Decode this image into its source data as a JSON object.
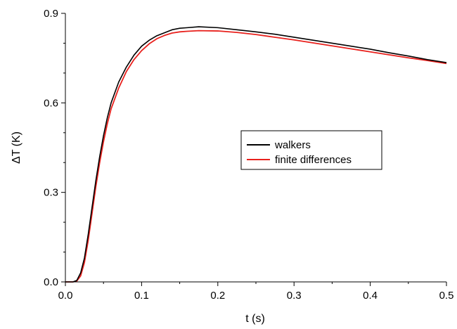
{
  "chart_data": {
    "type": "line",
    "xlabel": "t (s)",
    "ylabel": "ΔT  (K)",
    "xlim": [
      0.0,
      0.5
    ],
    "ylim": [
      0.0,
      0.9
    ],
    "x_ticks": [
      {
        "value": 0.0,
        "label": "0.0"
      },
      {
        "value": 0.1,
        "label": "0.1"
      },
      {
        "value": 0.2,
        "label": "0.2"
      },
      {
        "value": 0.3,
        "label": "0.3"
      },
      {
        "value": 0.4,
        "label": "0.4"
      },
      {
        "value": 0.5,
        "label": "0.5"
      }
    ],
    "y_ticks": [
      {
        "value": 0.0,
        "label": "0.0"
      },
      {
        "value": 0.3,
        "label": "0.3"
      },
      {
        "value": 0.6,
        "label": "0.6"
      },
      {
        "value": 0.9,
        "label": "0.9"
      }
    ],
    "grid": false,
    "legend_position": "center-right",
    "series": [
      {
        "name": "walkers",
        "color": "#000000",
        "x": [
          0.0,
          0.01,
          0.015,
          0.02,
          0.025,
          0.03,
          0.035,
          0.04,
          0.045,
          0.05,
          0.055,
          0.06,
          0.07,
          0.08,
          0.09,
          0.1,
          0.11,
          0.12,
          0.13,
          0.14,
          0.15,
          0.16,
          0.175,
          0.2,
          0.225,
          0.25,
          0.275,
          0.3,
          0.325,
          0.35,
          0.375,
          0.4,
          0.425,
          0.45,
          0.475,
          0.5
        ],
        "y": [
          0.0,
          0.0,
          0.005,
          0.03,
          0.08,
          0.16,
          0.25,
          0.34,
          0.42,
          0.49,
          0.55,
          0.6,
          0.67,
          0.72,
          0.76,
          0.79,
          0.81,
          0.825,
          0.835,
          0.845,
          0.85,
          0.852,
          0.855,
          0.852,
          0.845,
          0.838,
          0.83,
          0.82,
          0.81,
          0.8,
          0.79,
          0.78,
          0.768,
          0.757,
          0.745,
          0.735
        ]
      },
      {
        "name": "finite differences",
        "color": "#e8211d",
        "x": [
          0.0,
          0.01,
          0.015,
          0.02,
          0.025,
          0.03,
          0.035,
          0.04,
          0.045,
          0.05,
          0.055,
          0.06,
          0.07,
          0.08,
          0.09,
          0.1,
          0.11,
          0.12,
          0.13,
          0.14,
          0.15,
          0.16,
          0.175,
          0.2,
          0.225,
          0.25,
          0.275,
          0.3,
          0.325,
          0.35,
          0.375,
          0.4,
          0.425,
          0.45,
          0.475,
          0.5
        ],
        "y": [
          0.0,
          0.0,
          0.003,
          0.02,
          0.065,
          0.14,
          0.23,
          0.32,
          0.4,
          0.47,
          0.53,
          0.58,
          0.65,
          0.705,
          0.745,
          0.775,
          0.798,
          0.815,
          0.826,
          0.834,
          0.838,
          0.84,
          0.842,
          0.841,
          0.836,
          0.829,
          0.82,
          0.811,
          0.801,
          0.791,
          0.781,
          0.771,
          0.761,
          0.751,
          0.742,
          0.732
        ]
      }
    ]
  }
}
